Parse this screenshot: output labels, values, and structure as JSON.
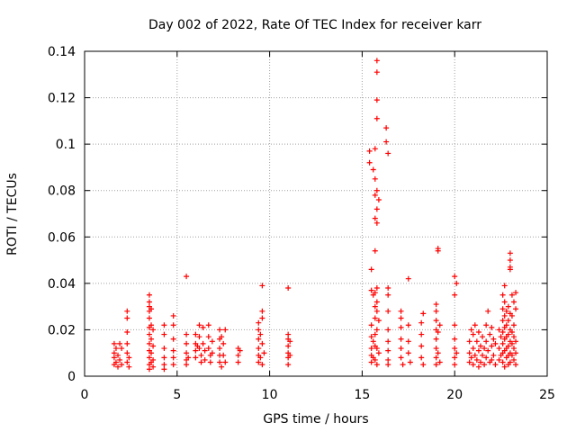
{
  "chart_data": {
    "type": "scatter",
    "title": "Day 002 of 2022, Rate Of TEC Index for receiver karr",
    "xlabel": "GPS time / hours",
    "ylabel": "ROTI / TECUs",
    "xlim": [
      0,
      25
    ],
    "ylim": [
      0,
      0.14
    ],
    "xticks": [
      0,
      5,
      10,
      15,
      20,
      25
    ],
    "xtick_labels": [
      "0",
      "5",
      "10",
      "15",
      "20",
      "25"
    ],
    "yticks": [
      0,
      0.02,
      0.04,
      0.06,
      0.08,
      0.1,
      0.12,
      0.14
    ],
    "ytick_labels": [
      "0",
      "0.02",
      "0.04",
      "0.06",
      "0.08",
      "0.1",
      "0.12",
      "0.14"
    ],
    "grid": true,
    "marker": "plus",
    "color": "#ff0000",
    "series": [
      {
        "name": "ROTI",
        "points": [
          [
            1.6,
            0.014
          ],
          [
            1.6,
            0.01
          ],
          [
            1.6,
            0.008
          ],
          [
            1.6,
            0.005
          ],
          [
            1.7,
            0.012
          ],
          [
            1.7,
            0.006
          ],
          [
            1.8,
            0.009
          ],
          [
            1.8,
            0.004
          ],
          [
            1.9,
            0.014
          ],
          [
            1.9,
            0.007
          ],
          [
            2.0,
            0.012
          ],
          [
            2.0,
            0.005
          ],
          [
            2.3,
            0.028
          ],
          [
            2.3,
            0.025
          ],
          [
            2.3,
            0.019
          ],
          [
            2.3,
            0.014
          ],
          [
            2.3,
            0.01
          ],
          [
            2.3,
            0.006
          ],
          [
            2.4,
            0.008
          ],
          [
            2.4,
            0.004
          ],
          [
            3.5,
            0.035
          ],
          [
            3.5,
            0.032
          ],
          [
            3.5,
            0.03
          ],
          [
            3.5,
            0.028
          ],
          [
            3.5,
            0.025
          ],
          [
            3.5,
            0.021
          ],
          [
            3.5,
            0.018
          ],
          [
            3.5,
            0.014
          ],
          [
            3.5,
            0.011
          ],
          [
            3.5,
            0.008
          ],
          [
            3.5,
            0.005
          ],
          [
            3.5,
            0.003
          ],
          [
            3.6,
            0.029
          ],
          [
            3.6,
            0.022
          ],
          [
            3.6,
            0.016
          ],
          [
            3.6,
            0.01
          ],
          [
            3.6,
            0.006
          ],
          [
            3.7,
            0.02
          ],
          [
            3.7,
            0.013
          ],
          [
            3.7,
            0.007
          ],
          [
            3.7,
            0.004
          ],
          [
            4.3,
            0.022
          ],
          [
            4.3,
            0.018
          ],
          [
            4.3,
            0.012
          ],
          [
            4.3,
            0.008
          ],
          [
            4.3,
            0.005
          ],
          [
            4.3,
            0.003
          ],
          [
            4.8,
            0.026
          ],
          [
            4.8,
            0.022
          ],
          [
            4.8,
            0.016
          ],
          [
            4.8,
            0.011
          ],
          [
            4.8,
            0.008
          ],
          [
            4.8,
            0.005
          ],
          [
            5.5,
            0.043
          ],
          [
            5.5,
            0.018
          ],
          [
            5.5,
            0.014
          ],
          [
            5.5,
            0.01
          ],
          [
            5.5,
            0.007
          ],
          [
            5.5,
            0.005
          ],
          [
            5.6,
            0.008
          ],
          [
            6.0,
            0.018
          ],
          [
            6.0,
            0.014
          ],
          [
            6.0,
            0.011
          ],
          [
            6.0,
            0.008
          ],
          [
            6.1,
            0.013
          ],
          [
            6.2,
            0.022
          ],
          [
            6.2,
            0.017
          ],
          [
            6.2,
            0.012
          ],
          [
            6.3,
            0.009
          ],
          [
            6.3,
            0.006
          ],
          [
            6.4,
            0.021
          ],
          [
            6.4,
            0.014
          ],
          [
            6.5,
            0.011
          ],
          [
            6.5,
            0.007
          ],
          [
            6.7,
            0.022
          ],
          [
            6.7,
            0.017
          ],
          [
            6.7,
            0.012
          ],
          [
            6.8,
            0.009
          ],
          [
            6.8,
            0.006
          ],
          [
            6.9,
            0.015
          ],
          [
            6.9,
            0.01
          ],
          [
            7.3,
            0.02
          ],
          [
            7.3,
            0.016
          ],
          [
            7.3,
            0.012
          ],
          [
            7.3,
            0.009
          ],
          [
            7.3,
            0.006
          ],
          [
            7.4,
            0.004
          ],
          [
            7.4,
            0.017
          ],
          [
            7.5,
            0.014
          ],
          [
            7.5,
            0.009
          ],
          [
            7.6,
            0.02
          ],
          [
            7.6,
            0.006
          ],
          [
            8.3,
            0.012
          ],
          [
            8.3,
            0.009
          ],
          [
            8.3,
            0.006
          ],
          [
            8.4,
            0.011
          ],
          [
            9.4,
            0.023
          ],
          [
            9.4,
            0.02
          ],
          [
            9.4,
            0.016
          ],
          [
            9.4,
            0.012
          ],
          [
            9.4,
            0.009
          ],
          [
            9.4,
            0.006
          ],
          [
            9.5,
            0.018
          ],
          [
            9.5,
            0.008
          ],
          [
            9.6,
            0.039
          ],
          [
            9.6,
            0.028
          ],
          [
            9.6,
            0.025
          ],
          [
            9.6,
            0.014
          ],
          [
            9.6,
            0.005
          ],
          [
            9.7,
            0.01
          ],
          [
            11.0,
            0.038
          ],
          [
            11.0,
            0.018
          ],
          [
            11.0,
            0.016
          ],
          [
            11.0,
            0.013
          ],
          [
            11.0,
            0.01
          ],
          [
            11.0,
            0.008
          ],
          [
            11.0,
            0.005
          ],
          [
            11.1,
            0.015
          ],
          [
            11.1,
            0.009
          ],
          [
            15.4,
            0.097
          ],
          [
            15.4,
            0.092
          ],
          [
            15.5,
            0.046
          ],
          [
            15.5,
            0.037
          ],
          [
            15.5,
            0.022
          ],
          [
            15.5,
            0.017
          ],
          [
            15.5,
            0.012
          ],
          [
            15.5,
            0.009
          ],
          [
            15.5,
            0.006
          ],
          [
            15.6,
            0.089
          ],
          [
            15.6,
            0.035
          ],
          [
            15.6,
            0.015
          ],
          [
            15.6,
            0.008
          ],
          [
            15.7,
            0.098
          ],
          [
            15.7,
            0.085
          ],
          [
            15.7,
            0.078
          ],
          [
            15.7,
            0.068
          ],
          [
            15.7,
            0.054
          ],
          [
            15.7,
            0.036
          ],
          [
            15.7,
            0.03
          ],
          [
            15.7,
            0.025
          ],
          [
            15.7,
            0.018
          ],
          [
            15.7,
            0.013
          ],
          [
            15.7,
            0.007
          ],
          [
            15.8,
            0.136
          ],
          [
            15.8,
            0.131
          ],
          [
            15.8,
            0.119
          ],
          [
            15.8,
            0.111
          ],
          [
            15.8,
            0.08
          ],
          [
            15.8,
            0.072
          ],
          [
            15.8,
            0.066
          ],
          [
            15.8,
            0.038
          ],
          [
            15.8,
            0.032
          ],
          [
            15.8,
            0.028
          ],
          [
            15.8,
            0.02
          ],
          [
            15.8,
            0.012
          ],
          [
            15.8,
            0.005
          ],
          [
            15.9,
            0.076
          ],
          [
            15.9,
            0.024
          ],
          [
            15.9,
            0.01
          ],
          [
            16.3,
            0.107
          ],
          [
            16.3,
            0.101
          ],
          [
            16.4,
            0.096
          ],
          [
            16.4,
            0.038
          ],
          [
            16.4,
            0.035
          ],
          [
            16.4,
            0.028
          ],
          [
            16.4,
            0.02
          ],
          [
            16.4,
            0.015
          ],
          [
            16.4,
            0.011
          ],
          [
            16.4,
            0.007
          ],
          [
            16.4,
            0.005
          ],
          [
            17.1,
            0.028
          ],
          [
            17.1,
            0.025
          ],
          [
            17.1,
            0.021
          ],
          [
            17.1,
            0.016
          ],
          [
            17.1,
            0.012
          ],
          [
            17.1,
            0.008
          ],
          [
            17.2,
            0.005
          ],
          [
            17.5,
            0.042
          ],
          [
            17.5,
            0.022
          ],
          [
            17.5,
            0.015
          ],
          [
            17.5,
            0.01
          ],
          [
            17.6,
            0.006
          ],
          [
            18.2,
            0.023
          ],
          [
            18.2,
            0.018
          ],
          [
            18.2,
            0.013
          ],
          [
            18.2,
            0.008
          ],
          [
            18.3,
            0.027
          ],
          [
            18.3,
            0.005
          ],
          [
            19.0,
            0.031
          ],
          [
            19.0,
            0.028
          ],
          [
            19.0,
            0.024
          ],
          [
            19.0,
            0.02
          ],
          [
            19.0,
            0.016
          ],
          [
            19.0,
            0.012
          ],
          [
            19.0,
            0.008
          ],
          [
            19.0,
            0.005
          ],
          [
            19.1,
            0.055
          ],
          [
            19.1,
            0.054
          ],
          [
            19.1,
            0.019
          ],
          [
            19.1,
            0.01
          ],
          [
            19.2,
            0.022
          ],
          [
            19.2,
            0.006
          ],
          [
            20.0,
            0.043
          ],
          [
            20.0,
            0.035
          ],
          [
            20.0,
            0.022
          ],
          [
            20.0,
            0.016
          ],
          [
            20.0,
            0.012
          ],
          [
            20.0,
            0.008
          ],
          [
            20.0,
            0.005
          ],
          [
            20.1,
            0.04
          ],
          [
            20.1,
            0.01
          ],
          [
            20.8,
            0.015
          ],
          [
            20.8,
            0.01
          ],
          [
            20.8,
            0.006
          ],
          [
            20.9,
            0.02
          ],
          [
            20.9,
            0.008
          ],
          [
            21.0,
            0.018
          ],
          [
            21.0,
            0.012
          ],
          [
            21.0,
            0.005
          ],
          [
            21.1,
            0.022
          ],
          [
            21.1,
            0.009
          ],
          [
            21.2,
            0.015
          ],
          [
            21.2,
            0.007
          ],
          [
            21.3,
            0.019
          ],
          [
            21.3,
            0.011
          ],
          [
            21.3,
            0.004
          ],
          [
            21.4,
            0.013
          ],
          [
            21.4,
            0.006
          ],
          [
            21.5,
            0.017
          ],
          [
            21.5,
            0.009
          ],
          [
            21.6,
            0.012
          ],
          [
            21.6,
            0.005
          ],
          [
            21.7,
            0.022
          ],
          [
            21.7,
            0.015
          ],
          [
            21.7,
            0.008
          ],
          [
            21.8,
            0.028
          ],
          [
            21.8,
            0.011
          ],
          [
            21.9,
            0.018
          ],
          [
            21.9,
            0.006
          ],
          [
            22.0,
            0.021
          ],
          [
            22.0,
            0.013
          ],
          [
            22.0,
            0.007
          ],
          [
            22.1,
            0.016
          ],
          [
            22.1,
            0.009
          ],
          [
            22.2,
            0.014
          ],
          [
            22.2,
            0.005
          ],
          [
            22.4,
            0.02
          ],
          [
            22.4,
            0.012
          ],
          [
            22.4,
            0.007
          ],
          [
            22.5,
            0.017
          ],
          [
            22.5,
            0.009
          ],
          [
            22.6,
            0.035
          ],
          [
            22.6,
            0.029
          ],
          [
            22.6,
            0.024
          ],
          [
            22.6,
            0.019
          ],
          [
            22.6,
            0.014
          ],
          [
            22.6,
            0.01
          ],
          [
            22.6,
            0.006
          ],
          [
            22.7,
            0.039
          ],
          [
            22.7,
            0.032
          ],
          [
            22.7,
            0.026
          ],
          [
            22.7,
            0.021
          ],
          [
            22.7,
            0.016
          ],
          [
            22.7,
            0.011
          ],
          [
            22.7,
            0.004
          ],
          [
            22.8,
            0.028
          ],
          [
            22.8,
            0.022
          ],
          [
            22.8,
            0.017
          ],
          [
            22.8,
            0.012
          ],
          [
            22.8,
            0.008
          ],
          [
            22.9,
            0.03
          ],
          [
            22.9,
            0.024
          ],
          [
            22.9,
            0.018
          ],
          [
            22.9,
            0.013
          ],
          [
            22.9,
            0.009
          ],
          [
            22.9,
            0.005
          ],
          [
            23.0,
            0.053
          ],
          [
            23.0,
            0.05
          ],
          [
            23.0,
            0.047
          ],
          [
            23.0,
            0.046
          ],
          [
            23.0,
            0.027
          ],
          [
            23.0,
            0.02
          ],
          [
            23.0,
            0.015
          ],
          [
            23.0,
            0.01
          ],
          [
            23.0,
            0.006
          ],
          [
            23.1,
            0.035
          ],
          [
            23.1,
            0.026
          ],
          [
            23.1,
            0.019
          ],
          [
            23.1,
            0.014
          ],
          [
            23.1,
            0.009
          ],
          [
            23.2,
            0.032
          ],
          [
            23.2,
            0.022
          ],
          [
            23.2,
            0.017
          ],
          [
            23.2,
            0.012
          ],
          [
            23.2,
            0.007
          ],
          [
            23.3,
            0.036
          ],
          [
            23.3,
            0.029
          ],
          [
            23.3,
            0.015
          ],
          [
            23.3,
            0.01
          ],
          [
            23.3,
            0.005
          ]
        ]
      }
    ]
  }
}
